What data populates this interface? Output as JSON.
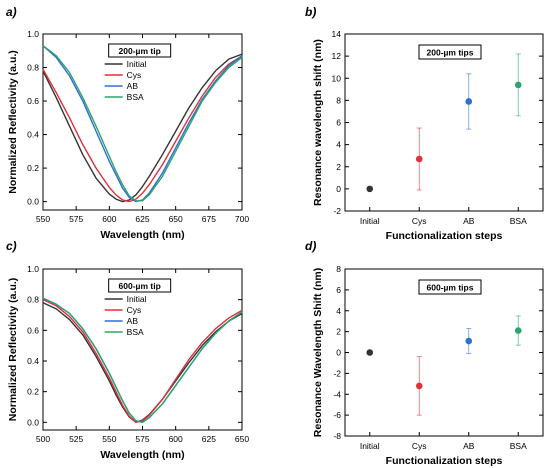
{
  "colors": {
    "Initial": "#333333",
    "Cys": "#e0303a",
    "AB": "#2e6fd6",
    "BSA": "#2aa56b"
  },
  "chart_data": [
    {
      "id": "a",
      "panel_label": "a)",
      "type": "line",
      "xlabel": "Wavelength (nm)",
      "ylabel": "Normalized Reflectivity (a.u.)",
      "xlim": [
        550,
        700
      ],
      "ylim": [
        -0.05,
        1.0
      ],
      "xticks": [
        550,
        575,
        600,
        625,
        650,
        675,
        700
      ],
      "yticks": [
        0.0,
        0.2,
        0.4,
        0.6,
        0.8,
        1.0
      ],
      "yticklabels": [
        "0.0",
        "0.2",
        "0.4",
        "0.6",
        "0.8",
        "1.0"
      ],
      "legend_title": "200-µm tip",
      "legend_position": "top-center",
      "series": [
        {
          "name": "Initial",
          "x": [
            550,
            560,
            570,
            580,
            590,
            600,
            605,
            610,
            615,
            620,
            625,
            630,
            640,
            650,
            660,
            670,
            680,
            690,
            700
          ],
          "y": [
            0.78,
            0.62,
            0.45,
            0.28,
            0.14,
            0.045,
            0.015,
            0.0,
            0.01,
            0.04,
            0.09,
            0.15,
            0.28,
            0.42,
            0.56,
            0.68,
            0.78,
            0.85,
            0.88
          ]
        },
        {
          "name": "Cys",
          "x": [
            550,
            560,
            570,
            580,
            590,
            600,
            605,
            610,
            615,
            620,
            625,
            630,
            640,
            650,
            660,
            670,
            680,
            690,
            700
          ],
          "y": [
            0.79,
            0.65,
            0.5,
            0.34,
            0.2,
            0.085,
            0.04,
            0.01,
            0.0,
            0.015,
            0.05,
            0.1,
            0.22,
            0.36,
            0.5,
            0.63,
            0.74,
            0.82,
            0.87
          ]
        },
        {
          "name": "AB",
          "x": [
            550,
            560,
            570,
            580,
            590,
            600,
            605,
            610,
            615,
            620,
            625,
            630,
            640,
            650,
            660,
            670,
            680,
            690,
            700
          ],
          "y": [
            0.93,
            0.86,
            0.75,
            0.6,
            0.42,
            0.24,
            0.16,
            0.08,
            0.025,
            0.0,
            0.01,
            0.05,
            0.17,
            0.32,
            0.47,
            0.61,
            0.72,
            0.81,
            0.87
          ]
        },
        {
          "name": "BSA",
          "x": [
            550,
            560,
            570,
            580,
            590,
            600,
            605,
            610,
            615,
            620,
            625,
            630,
            640,
            650,
            660,
            670,
            680,
            690,
            700
          ],
          "y": [
            0.93,
            0.87,
            0.77,
            0.62,
            0.45,
            0.27,
            0.18,
            0.1,
            0.035,
            0.005,
            0.005,
            0.04,
            0.15,
            0.3,
            0.45,
            0.6,
            0.71,
            0.8,
            0.86
          ]
        }
      ]
    },
    {
      "id": "b",
      "panel_label": "b)",
      "type": "scatter",
      "xlabel": "Functionalization steps",
      "ylabel": "Resonance wavelength shift (nm)",
      "categories": [
        "Initial",
        "Cys",
        "AB",
        "BSA"
      ],
      "ylim": [
        -2,
        14
      ],
      "yticks": [
        -2,
        0,
        2,
        4,
        6,
        8,
        10,
        12,
        14
      ],
      "legend_title": "200-µm tips",
      "legend_position": "top-center",
      "values": [
        0,
        2.7,
        7.9,
        9.4
      ],
      "errors": [
        0,
        2.8,
        2.5,
        2.8
      ]
    },
    {
      "id": "c",
      "panel_label": "c)",
      "type": "line",
      "xlabel": "Wavelength (nm)",
      "ylabel": "Normalized Reflectivity (a.u.)",
      "xlim": [
        500,
        650
      ],
      "ylim": [
        -0.05,
        1.0
      ],
      "xticks": [
        500,
        525,
        550,
        575,
        600,
        625,
        650
      ],
      "yticks": [
        0.0,
        0.2,
        0.4,
        0.6,
        0.8,
        1.0
      ],
      "yticklabels": [
        "0.0",
        "0.2",
        "0.4",
        "0.6",
        "0.8",
        "1.0"
      ],
      "legend_title": "600-µm tip",
      "legend_position": "top-center",
      "series": [
        {
          "name": "Initial",
          "x": [
            500,
            510,
            520,
            530,
            540,
            550,
            555,
            560,
            565,
            570,
            575,
            580,
            590,
            600,
            610,
            620,
            630,
            640,
            650
          ],
          "y": [
            0.78,
            0.74,
            0.67,
            0.57,
            0.43,
            0.27,
            0.18,
            0.1,
            0.035,
            0.0,
            0.015,
            0.05,
            0.15,
            0.27,
            0.39,
            0.5,
            0.59,
            0.66,
            0.71
          ]
        },
        {
          "name": "Cys",
          "x": [
            500,
            510,
            520,
            530,
            540,
            550,
            555,
            560,
            565,
            570,
            575,
            580,
            590,
            600,
            610,
            620,
            630,
            640,
            650
          ],
          "y": [
            0.8,
            0.76,
            0.69,
            0.59,
            0.45,
            0.29,
            0.2,
            0.11,
            0.04,
            0.0,
            0.01,
            0.045,
            0.15,
            0.28,
            0.41,
            0.52,
            0.61,
            0.68,
            0.73
          ]
        },
        {
          "name": "AB",
          "x": [
            500,
            510,
            520,
            530,
            540,
            550,
            555,
            560,
            565,
            570,
            575,
            580,
            590,
            600,
            610,
            620,
            630,
            640,
            650
          ],
          "y": [
            0.81,
            0.77,
            0.71,
            0.61,
            0.48,
            0.32,
            0.23,
            0.14,
            0.06,
            0.01,
            0.0,
            0.03,
            0.12,
            0.24,
            0.36,
            0.48,
            0.58,
            0.66,
            0.72
          ]
        },
        {
          "name": "BSA",
          "x": [
            500,
            510,
            520,
            530,
            540,
            550,
            555,
            560,
            565,
            570,
            575,
            580,
            590,
            600,
            610,
            620,
            630,
            640,
            650
          ],
          "y": [
            0.81,
            0.77,
            0.71,
            0.61,
            0.48,
            0.32,
            0.23,
            0.14,
            0.06,
            0.01,
            0.0,
            0.03,
            0.12,
            0.24,
            0.36,
            0.48,
            0.58,
            0.66,
            0.72
          ]
        }
      ]
    },
    {
      "id": "d",
      "panel_label": "d)",
      "type": "scatter",
      "xlabel": "Functionalization steps",
      "ylabel": "Resonance Wavelength Shift (nm)",
      "categories": [
        "Initial",
        "Cys",
        "AB",
        "BSA"
      ],
      "ylim": [
        -8,
        8
      ],
      "yticks": [
        -8,
        -6,
        -4,
        -2,
        0,
        2,
        4,
        6,
        8
      ],
      "legend_title": "600-µm tips",
      "legend_position": "top-center",
      "values": [
        0,
        -3.2,
        1.1,
        2.1
      ],
      "errors": [
        0,
        2.8,
        1.2,
        1.4
      ]
    }
  ]
}
